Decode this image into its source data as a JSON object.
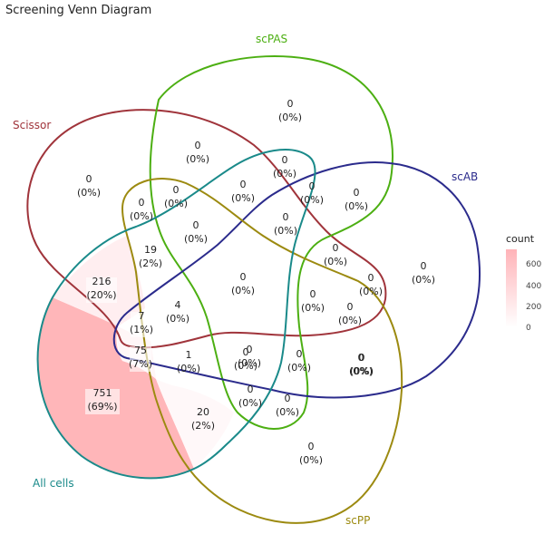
{
  "title": "Screening Venn Diagram",
  "sets": [
    {
      "name": "Scissor",
      "color": "#A0343B"
    },
    {
      "name": "scPAS",
      "color": "#4CAF12"
    },
    {
      "name": "scAB",
      "color": "#2B2B8C"
    },
    {
      "name": "scPP",
      "color": "#9C8A10"
    },
    {
      "name": "All cells",
      "color": "#1A8A8A"
    }
  ],
  "regions": [
    {
      "count": "0",
      "pct": "(0%)"
    },
    {
      "count": "0",
      "pct": "(0%)"
    },
    {
      "count": "0",
      "pct": "(0%)"
    },
    {
      "count": "0",
      "pct": "(0%)"
    },
    {
      "count": "0",
      "pct": "(0%)"
    },
    {
      "count": "0",
      "pct": "(0%)"
    },
    {
      "count": "0",
      "pct": "(0%)"
    },
    {
      "count": "0",
      "pct": "(0%)"
    },
    {
      "count": "0",
      "pct": "(0%)"
    },
    {
      "count": "0",
      "pct": "(0%)"
    },
    {
      "count": "0",
      "pct": "(0%)"
    },
    {
      "count": "0",
      "pct": "(0%)"
    },
    {
      "count": "19",
      "pct": "(2%)"
    },
    {
      "count": "0",
      "pct": "(0%)"
    },
    {
      "count": "0",
      "pct": "(0%)"
    },
    {
      "count": "0",
      "pct": "(0%)"
    },
    {
      "count": "216",
      "pct": "(20%)"
    },
    {
      "count": "4",
      "pct": "(0%)"
    },
    {
      "count": "0",
      "pct": "(0%)"
    },
    {
      "count": "0",
      "pct": "(0%)"
    },
    {
      "count": "0",
      "pct": "(0%)"
    },
    {
      "count": "7",
      "pct": "(1%)"
    },
    {
      "count": "0",
      "pct": "(0%)"
    },
    {
      "count": "75",
      "pct": "(7%)"
    },
    {
      "count": "1",
      "pct": "(0%)"
    },
    {
      "count": "0",
      "pct": "(0%)"
    },
    {
      "count": "0",
      "pct": "(0%)"
    },
    {
      "count": "0",
      "pct": "(0%)"
    },
    {
      "count": "751",
      "pct": "(69%)"
    },
    {
      "count": "0",
      "pct": "(0%)"
    },
    {
      "count": "0",
      "pct": "(0%)"
    },
    {
      "count": "20",
      "pct": "(2%)"
    },
    {
      "count": "0",
      "pct": "(0%)"
    }
  ],
  "legend": {
    "title": "count",
    "ticks": [
      "600",
      "400",
      "200",
      "0"
    ],
    "color_low": "#FFFFFF",
    "color_high": "#FFB3B8"
  }
}
